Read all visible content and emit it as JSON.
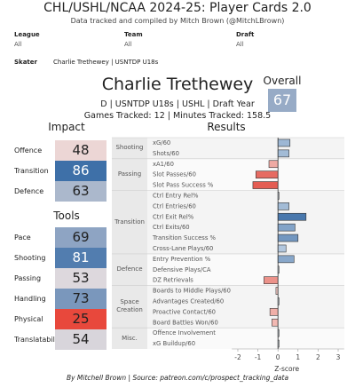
{
  "header": {
    "title": "CHL/USHL/NCAA 2024-25: Player Cards 2.0",
    "subtitle": "Data tracked and compiled by Mitch Brown (@MitchLBrown)"
  },
  "filters": [
    {
      "label": "League",
      "value": "All"
    },
    {
      "label": "Team",
      "value": "All"
    },
    {
      "label": "Draft",
      "value": "All"
    }
  ],
  "skater": {
    "label": "Skater",
    "value": "Charlie Trethewey | USNTDP U18s"
  },
  "player": {
    "name": "Charlie Trethewey",
    "line1": "D | USNTDP U18s | USHL | Draft Year",
    "line2": "Games Tracked: 12 | Minutes Tracked: 158.5"
  },
  "overall": {
    "label": "Overall",
    "value": 67
  },
  "impact": {
    "title": "Impact",
    "items": [
      {
        "label": "Offence",
        "value": 48
      },
      {
        "label": "Transition",
        "value": 86
      },
      {
        "label": "Defence",
        "value": 63
      }
    ]
  },
  "tools": {
    "title": "Tools",
    "items": [
      {
        "label": "Pace",
        "value": 69
      },
      {
        "label": "Shooting",
        "value": 81
      },
      {
        "label": "Passing",
        "value": 53
      },
      {
        "label": "Handling",
        "value": 73
      },
      {
        "label": "Physical",
        "value": 25
      },
      {
        "label": "Translatability",
        "value": 54
      }
    ]
  },
  "rating_colors": {
    "high": "#3e70a8",
    "mid": "#ece2e2",
    "low": "#e8483c"
  },
  "chart_data": {
    "type": "bar",
    "orientation": "horizontal",
    "title": "Results",
    "x_label": "Z-score",
    "positive_color": "#3e70a8",
    "negative_color": "#e0453a",
    "xlim": [
      -2.3,
      3.3
    ],
    "xticks": [
      -2,
      -1,
      0,
      1,
      2,
      3
    ],
    "groups": [
      {
        "name": "Shooting",
        "categories": [
          "xG/60",
          "Shots/60"
        ],
        "values": [
          0.6,
          0.55
        ]
      },
      {
        "name": "Passing",
        "categories": [
          "xA1/60",
          "Slot Passes/60",
          "Slot Pass Success %"
        ],
        "values": [
          -0.45,
          -1.1,
          -1.25
        ]
      },
      {
        "name": "Transition",
        "categories": [
          "Ctrl Entry Rel%",
          "Ctrl Entries/60",
          "Ctrl Exit Rel%",
          "Ctrl Exits/60",
          "Transition Success %",
          "Cross-Lane Plays/60"
        ],
        "values": [
          0.05,
          0.55,
          1.4,
          0.85,
          1.0,
          0.4
        ]
      },
      {
        "name": "Defence",
        "categories": [
          "Entry Prevention %",
          "Defensive Plays/CA",
          "DZ Retrievals"
        ],
        "values": [
          0.8,
          0.05,
          -0.7
        ]
      },
      {
        "name": "Space Creation",
        "categories": [
          "Boards to Middle Plays/60",
          "Advantages Created/60",
          "Proactive Contact/60",
          "Board Battles Won/60"
        ],
        "values": [
          -0.1,
          0.05,
          -0.4,
          -0.3
        ]
      },
      {
        "name": "Misc.",
        "categories": [
          "Offence Involvement",
          "xG Buildup/60"
        ],
        "values": [
          0.05,
          0.05
        ]
      }
    ]
  },
  "footer": "By Mitchell Brown | Source: patreon.com/c/prospect_tracking_data"
}
